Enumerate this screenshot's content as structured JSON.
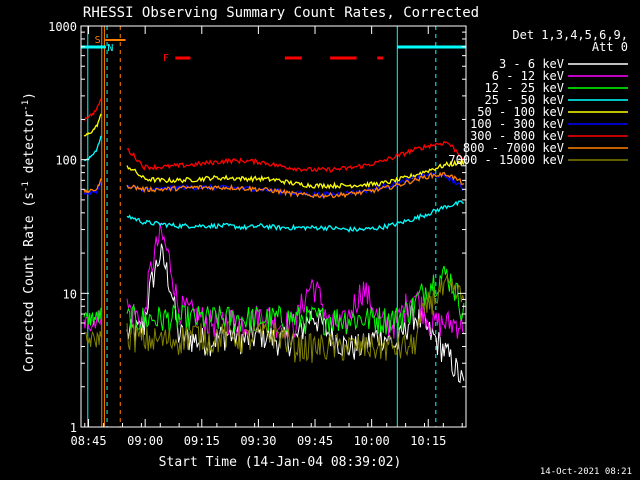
{
  "chart_data": {
    "type": "line",
    "title": "RHESSI Observing Summary Count Rates, Corrected",
    "xlabel": "Start Time (14-Jan-04 08:39:02)",
    "ylabel": "Corrected Count Rate (s",
    "ylabel_sup1": "-1",
    "ylabel_mid": " detector",
    "ylabel_sup2": "-1",
    "ylabel_end": ")",
    "y_scale": "log",
    "ylim": [
      1,
      1000
    ],
    "xlim_minutes": [
      -2.0,
      100.0
    ],
    "x_ticks": [
      {
        "label": "08:45",
        "t": 0
      },
      {
        "label": "09:00",
        "t": 15
      },
      {
        "label": "09:15",
        "t": 30
      },
      {
        "label": "09:30",
        "t": 45
      },
      {
        "label": "09:45",
        "t": 60
      },
      {
        "label": "10:00",
        "t": 75
      },
      {
        "label": "10:15",
        "t": 90
      }
    ],
    "y_ticks": [
      {
        "label": "1",
        "v": 1
      },
      {
        "label": "10",
        "v": 10
      },
      {
        "label": "100",
        "v": 100
      },
      {
        "label": "1000",
        "v": 1000
      }
    ],
    "legend_header": [
      "Det 1,3,4,5,6,9,",
      "Att 0"
    ],
    "legend_placement": "right",
    "footer": "14-Oct-2021 08:21",
    "series": [
      {
        "name": "3 - 6 keV",
        "color": "#ffffff",
        "pre": [
          0,
          0,
          0,
          0,
          0
        ],
        "post": [
          5,
          5.5,
          20,
          5,
          4.5,
          4.5,
          5,
          4.5,
          5,
          4.5,
          4.5,
          7,
          5,
          4,
          4,
          5,
          4,
          7,
          5,
          3.5,
          2
        ]
      },
      {
        "name": "6 - 12 keV",
        "color": "#ff00ff",
        "pre": [
          6,
          6,
          6,
          6.5,
          7
        ],
        "post": [
          8,
          6,
          28,
          8,
          7,
          6,
          6.5,
          6,
          7,
          6,
          6,
          12,
          6,
          6,
          11,
          6,
          6,
          10,
          6,
          6,
          6
        ]
      },
      {
        "name": "12 - 25 keV",
        "color": "#00ff00",
        "pre": [
          6.5,
          6.5,
          6.5,
          6.5,
          7
        ],
        "post": [
          6.5,
          6.5,
          6.5,
          6.5,
          6.5,
          6.5,
          6.5,
          6.5,
          6.5,
          6.5,
          6.5,
          6.5,
          6.5,
          6.5,
          6.5,
          6.5,
          6.5,
          8,
          12,
          14,
          7
        ]
      },
      {
        "name": "25 - 50 keV",
        "color": "#00ffff",
        "pre": [
          100,
          100,
          110,
          120,
          150
        ],
        "post": [
          38,
          34,
          33,
          32,
          32,
          32,
          32,
          31,
          32,
          31,
          31,
          31,
          31,
          30,
          30,
          31,
          33,
          36,
          40,
          45,
          48
        ]
      },
      {
        "name": "50 - 100 keV",
        "color": "#ffff00",
        "pre": [
          150,
          155,
          165,
          180,
          220
        ],
        "post": [
          90,
          72,
          70,
          70,
          71,
          73,
          73,
          72,
          72,
          70,
          66,
          64,
          64,
          64,
          65,
          66,
          70,
          76,
          84,
          92,
          95
        ]
      },
      {
        "name": "100 - 300 keV",
        "color": "#0000ff",
        "pre": [
          56,
          56,
          57,
          58,
          70
        ],
        "post": [
          62,
          60,
          60,
          62,
          62,
          62,
          62,
          61,
          60,
          58,
          56,
          55,
          55,
          56,
          58,
          62,
          66,
          72,
          78,
          74,
          60
        ]
      },
      {
        "name": "300 - 800 keV",
        "color": "#ff0000",
        "pre": [
          200,
          210,
          220,
          240,
          290
        ],
        "post": [
          120,
          88,
          88,
          90,
          92,
          95,
          98,
          98,
          96,
          90,
          86,
          84,
          84,
          86,
          90,
          96,
          106,
          118,
          128,
          135,
          100
        ]
      },
      {
        "name": "800 - 7000 keV",
        "color": "#ff8000",
        "pre": [
          58,
          58,
          59,
          60,
          72
        ],
        "post": [
          64,
          60,
          60,
          61,
          62,
          62,
          62,
          61,
          60,
          58,
          55,
          54,
          54,
          55,
          57,
          60,
          64,
          70,
          76,
          78,
          66
        ]
      },
      {
        "name": "7000 - 15000 keV",
        "color": "#808000",
        "pre": [
          4.5,
          4.5,
          4.5,
          4.5,
          5
        ],
        "post": [
          5,
          4.5,
          4.5,
          4.5,
          5,
          4.5,
          5,
          4.5,
          5,
          5,
          4,
          4,
          4,
          4,
          4,
          4,
          4,
          4,
          9,
          11,
          9
        ]
      }
    ],
    "flags": [
      {
        "label": "S",
        "color": "#ff8000"
      },
      {
        "label": "N",
        "color": "#00ffff"
      },
      {
        "label": "F",
        "color": "#ff0000"
      }
    ]
  }
}
